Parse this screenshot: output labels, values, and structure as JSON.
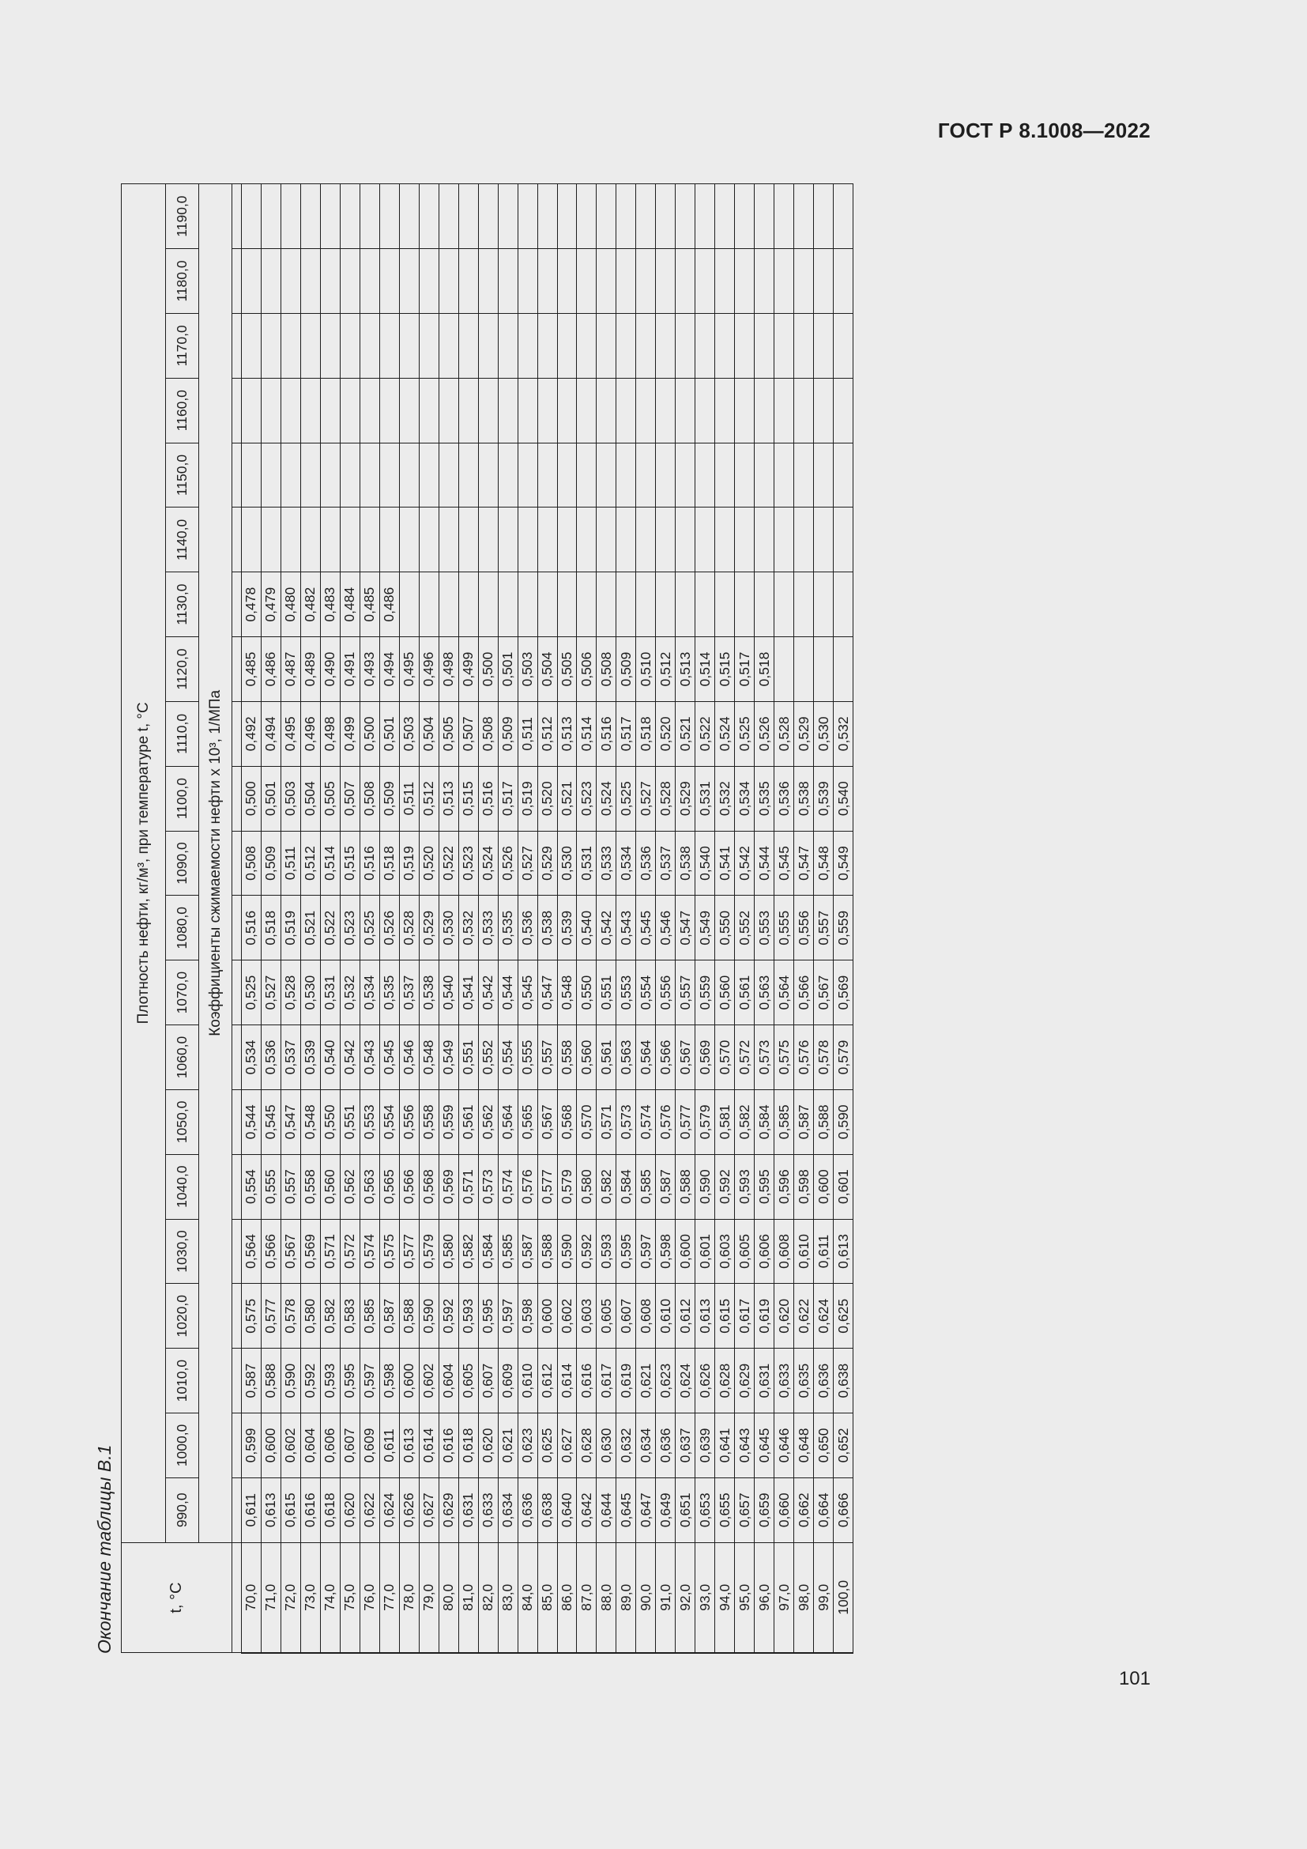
{
  "header": {
    "doc_code": "ГОСТ Р 8.1008—2022",
    "page_number": "101",
    "caption": "Окончание таблицы В.1"
  },
  "table": {
    "corner_label": "t, °C",
    "density_label": "Плотность нефти, кг/м³, при температуре t, °C",
    "coef_label": "Коэффициенты сжимаемости нефти x 10³, 1/МПа",
    "columns": [
      "990,0",
      "1000,0",
      "1010,0",
      "1020,0",
      "1030,0",
      "1040,0",
      "1050,0",
      "1060,0",
      "1070,0",
      "1080,0",
      "1090,0",
      "1100,0",
      "1110,0",
      "1120,0",
      "1130,0",
      "1140,0",
      "1150,0",
      "1160,0",
      "1170,0",
      "1180,0",
      "1190,0"
    ],
    "rows": [
      {
        "t": "70,0",
        "v": [
          "0,611",
          "0,599",
          "0,587",
          "0,575",
          "0,564",
          "0,554",
          "0,544",
          "0,534",
          "0,525",
          "0,516",
          "0,508",
          "0,500",
          "0,492",
          "0,485",
          "0,478",
          "",
          "",
          "",
          "",
          "",
          ""
        ]
      },
      {
        "t": "71,0",
        "v": [
          "0,613",
          "0,600",
          "0,588",
          "0,577",
          "0,566",
          "0,555",
          "0,545",
          "0,536",
          "0,527",
          "0,518",
          "0,509",
          "0,501",
          "0,494",
          "0,486",
          "0,479",
          "",
          "",
          "",
          "",
          "",
          ""
        ]
      },
      {
        "t": "72,0",
        "v": [
          "0,615",
          "0,602",
          "0,590",
          "0,578",
          "0,567",
          "0,557",
          "0,547",
          "0,537",
          "0,528",
          "0,519",
          "0,511",
          "0,503",
          "0,495",
          "0,487",
          "0,480",
          "",
          "",
          "",
          "",
          "",
          ""
        ]
      },
      {
        "t": "73,0",
        "v": [
          "0,616",
          "0,604",
          "0,592",
          "0,580",
          "0,569",
          "0,558",
          "0,548",
          "0,539",
          "0,530",
          "0,521",
          "0,512",
          "0,504",
          "0,496",
          "0,489",
          "0,482",
          "",
          "",
          "",
          "",
          "",
          ""
        ]
      },
      {
        "t": "74,0",
        "v": [
          "0,618",
          "0,606",
          "0,593",
          "0,582",
          "0,571",
          "0,560",
          "0,550",
          "0,540",
          "0,531",
          "0,522",
          "0,514",
          "0,505",
          "0,498",
          "0,490",
          "0,483",
          "",
          "",
          "",
          "",
          "",
          ""
        ]
      },
      {
        "t": "75,0",
        "v": [
          "0,620",
          "0,607",
          "0,595",
          "0,583",
          "0,572",
          "0,562",
          "0,551",
          "0,542",
          "0,532",
          "0,523",
          "0,515",
          "0,507",
          "0,499",
          "0,491",
          "0,484",
          "",
          "",
          "",
          "",
          "",
          ""
        ]
      },
      {
        "t": "76,0",
        "v": [
          "0,622",
          "0,609",
          "0,597",
          "0,585",
          "0,574",
          "0,563",
          "0,553",
          "0,543",
          "0,534",
          "0,525",
          "0,516",
          "0,508",
          "0,500",
          "0,493",
          "0,485",
          "",
          "",
          "",
          "",
          "",
          ""
        ]
      },
      {
        "t": "77,0",
        "v": [
          "0,624",
          "0,611",
          "0,598",
          "0,587",
          "0,575",
          "0,565",
          "0,554",
          "0,545",
          "0,535",
          "0,526",
          "0,518",
          "0,509",
          "0,501",
          "0,494",
          "0,486",
          "",
          "",
          "",
          "",
          "",
          ""
        ]
      },
      {
        "t": "78,0",
        "v": [
          "0,626",
          "0,613",
          "0,600",
          "0,588",
          "0,577",
          "0,566",
          "0,556",
          "0,546",
          "0,537",
          "0,528",
          "0,519",
          "0,511",
          "0,503",
          "0,495",
          "",
          "",
          "",
          "",
          "",
          "",
          ""
        ]
      },
      {
        "t": "79,0",
        "v": [
          "0,627",
          "0,614",
          "0,602",
          "0,590",
          "0,579",
          "0,568",
          "0,558",
          "0,548",
          "0,538",
          "0,529",
          "0,520",
          "0,512",
          "0,504",
          "0,496",
          "",
          "",
          "",
          "",
          "",
          "",
          ""
        ]
      },
      {
        "t": "80,0",
        "v": [
          "0,629",
          "0,616",
          "0,604",
          "0,592",
          "0,580",
          "0,569",
          "0,559",
          "0,549",
          "0,540",
          "0,530",
          "0,522",
          "0,513",
          "0,505",
          "0,498",
          "",
          "",
          "",
          "",
          "",
          "",
          ""
        ]
      },
      {
        "t": "81,0",
        "v": [
          "0,631",
          "0,618",
          "0,605",
          "0,593",
          "0,582",
          "0,571",
          "0,561",
          "0,551",
          "0,541",
          "0,532",
          "0,523",
          "0,515",
          "0,507",
          "0,499",
          "",
          "",
          "",
          "",
          "",
          "",
          ""
        ]
      },
      {
        "t": "82,0",
        "v": [
          "0,633",
          "0,620",
          "0,607",
          "0,595",
          "0,584",
          "0,573",
          "0,562",
          "0,552",
          "0,542",
          "0,533",
          "0,524",
          "0,516",
          "0,508",
          "0,500",
          "",
          "",
          "",
          "",
          "",
          "",
          ""
        ]
      },
      {
        "t": "83,0",
        "v": [
          "0,634",
          "0,621",
          "0,609",
          "0,597",
          "0,585",
          "0,574",
          "0,564",
          "0,554",
          "0,544",
          "0,535",
          "0,526",
          "0,517",
          "0,509",
          "0,501",
          "",
          "",
          "",
          "",
          "",
          "",
          ""
        ]
      },
      {
        "t": "84,0",
        "v": [
          "0,636",
          "0,623",
          "0,610",
          "0,598",
          "0,587",
          "0,576",
          "0,565",
          "0,555",
          "0,545",
          "0,536",
          "0,527",
          "0,519",
          "0,511",
          "0,503",
          "",
          "",
          "",
          "",
          "",
          "",
          ""
        ]
      },
      {
        "t": "85,0",
        "v": [
          "0,638",
          "0,625",
          "0,612",
          "0,600",
          "0,588",
          "0,577",
          "0,567",
          "0,557",
          "0,547",
          "0,538",
          "0,529",
          "0,520",
          "0,512",
          "0,504",
          "",
          "",
          "",
          "",
          "",
          "",
          ""
        ]
      },
      {
        "t": "86,0",
        "v": [
          "0,640",
          "0,627",
          "0,614",
          "0,602",
          "0,590",
          "0,579",
          "0,568",
          "0,558",
          "0,548",
          "0,539",
          "0,530",
          "0,521",
          "0,513",
          "0,505",
          "",
          "",
          "",
          "",
          "",
          "",
          ""
        ]
      },
      {
        "t": "87,0",
        "v": [
          "0,642",
          "0,628",
          "0,616",
          "0,603",
          "0,592",
          "0,580",
          "0,570",
          "0,560",
          "0,550",
          "0,540",
          "0,531",
          "0,523",
          "0,514",
          "0,506",
          "",
          "",
          "",
          "",
          "",
          "",
          ""
        ]
      },
      {
        "t": "88,0",
        "v": [
          "0,644",
          "0,630",
          "0,617",
          "0,605",
          "0,593",
          "0,582",
          "0,571",
          "0,561",
          "0,551",
          "0,542",
          "0,533",
          "0,524",
          "0,516",
          "0,508",
          "",
          "",
          "",
          "",
          "",
          "",
          ""
        ]
      },
      {
        "t": "89,0",
        "v": [
          "0,645",
          "0,632",
          "0,619",
          "0,607",
          "0,595",
          "0,584",
          "0,573",
          "0,563",
          "0,553",
          "0,543",
          "0,534",
          "0,525",
          "0,517",
          "0,509",
          "",
          "",
          "",
          "",
          "",
          "",
          ""
        ]
      },
      {
        "t": "90,0",
        "v": [
          "0,647",
          "0,634",
          "0,621",
          "0,608",
          "0,597",
          "0,585",
          "0,574",
          "0,564",
          "0,554",
          "0,545",
          "0,536",
          "0,527",
          "0,518",
          "0,510",
          "",
          "",
          "",
          "",
          "",
          "",
          ""
        ]
      },
      {
        "t": "91,0",
        "v": [
          "0,649",
          "0,636",
          "0,623",
          "0,610",
          "0,598",
          "0,587",
          "0,576",
          "0,566",
          "0,556",
          "0,546",
          "0,537",
          "0,528",
          "0,520",
          "0,512",
          "",
          "",
          "",
          "",
          "",
          "",
          ""
        ]
      },
      {
        "t": "92,0",
        "v": [
          "0,651",
          "0,637",
          "0,624",
          "0,612",
          "0,600",
          "0,588",
          "0,577",
          "0,567",
          "0,557",
          "0,547",
          "0,538",
          "0,529",
          "0,521",
          "0,513",
          "",
          "",
          "",
          "",
          "",
          "",
          ""
        ]
      },
      {
        "t": "93,0",
        "v": [
          "0,653",
          "0,639",
          "0,626",
          "0,613",
          "0,601",
          "0,590",
          "0,579",
          "0,569",
          "0,559",
          "0,549",
          "0,540",
          "0,531",
          "0,522",
          "0,514",
          "",
          "",
          "",
          "",
          "",
          "",
          ""
        ]
      },
      {
        "t": "94,0",
        "v": [
          "0,655",
          "0,641",
          "0,628",
          "0,615",
          "0,603",
          "0,592",
          "0,581",
          "0,570",
          "0,560",
          "0,550",
          "0,541",
          "0,532",
          "0,524",
          "0,515",
          "",
          "",
          "",
          "",
          "",
          "",
          ""
        ]
      },
      {
        "t": "95,0",
        "v": [
          "0,657",
          "0,643",
          "0,629",
          "0,617",
          "0,605",
          "0,593",
          "0,582",
          "0,572",
          "0,561",
          "0,552",
          "0,542",
          "0,534",
          "0,525",
          "0,517",
          "",
          "",
          "",
          "",
          "",
          "",
          ""
        ]
      },
      {
        "t": "96,0",
        "v": [
          "0,659",
          "0,645",
          "0,631",
          "0,619",
          "0,606",
          "0,595",
          "0,584",
          "0,573",
          "0,563",
          "0,553",
          "0,544",
          "0,535",
          "0,526",
          "0,518",
          "",
          "",
          "",
          "",
          "",
          "",
          ""
        ]
      },
      {
        "t": "97,0",
        "v": [
          "0,660",
          "0,646",
          "0,633",
          "0,620",
          "0,608",
          "0,596",
          "0,585",
          "0,575",
          "0,564",
          "0,555",
          "0,545",
          "0,536",
          "0,528",
          "",
          "",
          "",
          "",
          "",
          "",
          "",
          ""
        ]
      },
      {
        "t": "98,0",
        "v": [
          "0,662",
          "0,648",
          "0,635",
          "0,622",
          "0,610",
          "0,598",
          "0,587",
          "0,576",
          "0,566",
          "0,556",
          "0,547",
          "0,538",
          "0,529",
          "",
          "",
          "",
          "",
          "",
          "",
          "",
          ""
        ]
      },
      {
        "t": "99,0",
        "v": [
          "0,664",
          "0,650",
          "0,636",
          "0,624",
          "0,611",
          "0,600",
          "0,588",
          "0,578",
          "0,567",
          "0,557",
          "0,548",
          "0,539",
          "0,530",
          "",
          "",
          "",
          "",
          "",
          "",
          "",
          ""
        ]
      },
      {
        "t": "100,0",
        "v": [
          "0,666",
          "0,652",
          "0,638",
          "0,625",
          "0,613",
          "0,601",
          "0,590",
          "0,579",
          "0,569",
          "0,559",
          "0,549",
          "0,540",
          "0,532",
          "",
          "",
          "",
          "",
          "",
          "",
          "",
          ""
        ]
      }
    ]
  }
}
